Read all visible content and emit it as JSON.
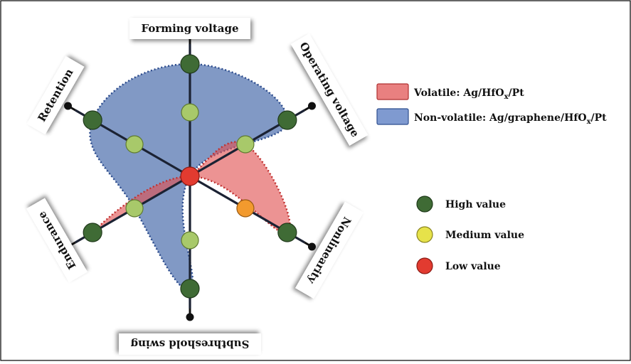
{
  "chart_data": {
    "type": "radar",
    "axes": [
      "Forming voltage",
      "Operating voltage",
      "Nonlinearity",
      "Subthreshold swing",
      "Endurance",
      "Retention"
    ],
    "levels": [
      "Low value",
      "Medium value",
      "High value"
    ],
    "level_colors": {
      "High value": "#3f6b35",
      "Medium value": "#a8c96a",
      "Low value": "#e23b30",
      "Orange": "#f29a2e"
    },
    "series": [
      {
        "name": "Volatile: Ag/HfOx/Pt",
        "color": "#e05a5a",
        "values": [
          1,
          2,
          3,
          1,
          3,
          1
        ]
      },
      {
        "name": "Non-volatile: Ag/graphene/HfOx/Pt",
        "color": "#5f7fb8",
        "values": [
          3,
          3,
          1,
          3,
          2,
          3
        ]
      }
    ],
    "legend": {
      "series": [
        {
          "label_main": "Volatile: Ag/HfO",
          "sub": "x",
          "label_tail": "/Pt",
          "color": "#e06666"
        },
        {
          "label_main": "Non-volatile: Ag/graphene/HfO",
          "sub": "x",
          "label_tail": "/Pt",
          "color": "#6d8cc4"
        }
      ],
      "levels": [
        {
          "label": "High value",
          "color": "#3f6b35"
        },
        {
          "label": "Medium value",
          "color": "#e6e24a"
        },
        {
          "label": "Low value",
          "color": "#e23b30"
        }
      ]
    }
  }
}
